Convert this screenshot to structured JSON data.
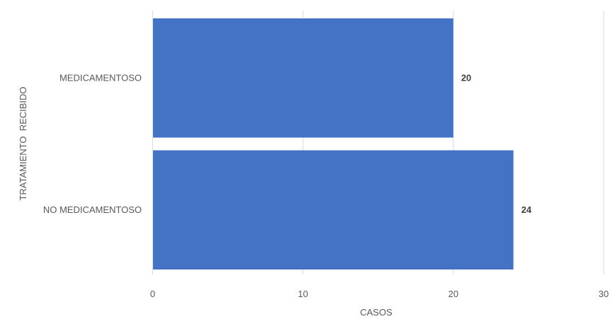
{
  "chart_data": {
    "type": "bar",
    "orientation": "horizontal",
    "categories": [
      "MEDICAMENTOSO",
      "NO MEDICAMENTOSO"
    ],
    "values": [
      20,
      24
    ],
    "data_labels": [
      "20",
      "24"
    ],
    "xlabel": "CASOS",
    "ylabel": "TRATAMIENTO  RECIBIDO",
    "xlim": [
      0,
      30
    ],
    "x_ticks": [
      0,
      10,
      20,
      30
    ],
    "x_tick_labels": [
      "0",
      "10",
      "20",
      "30"
    ],
    "grid": "vertical",
    "legend": "none",
    "colors": {
      "bar": "#4472C4",
      "grid": "#D9D9D9",
      "text": "#595959"
    }
  }
}
